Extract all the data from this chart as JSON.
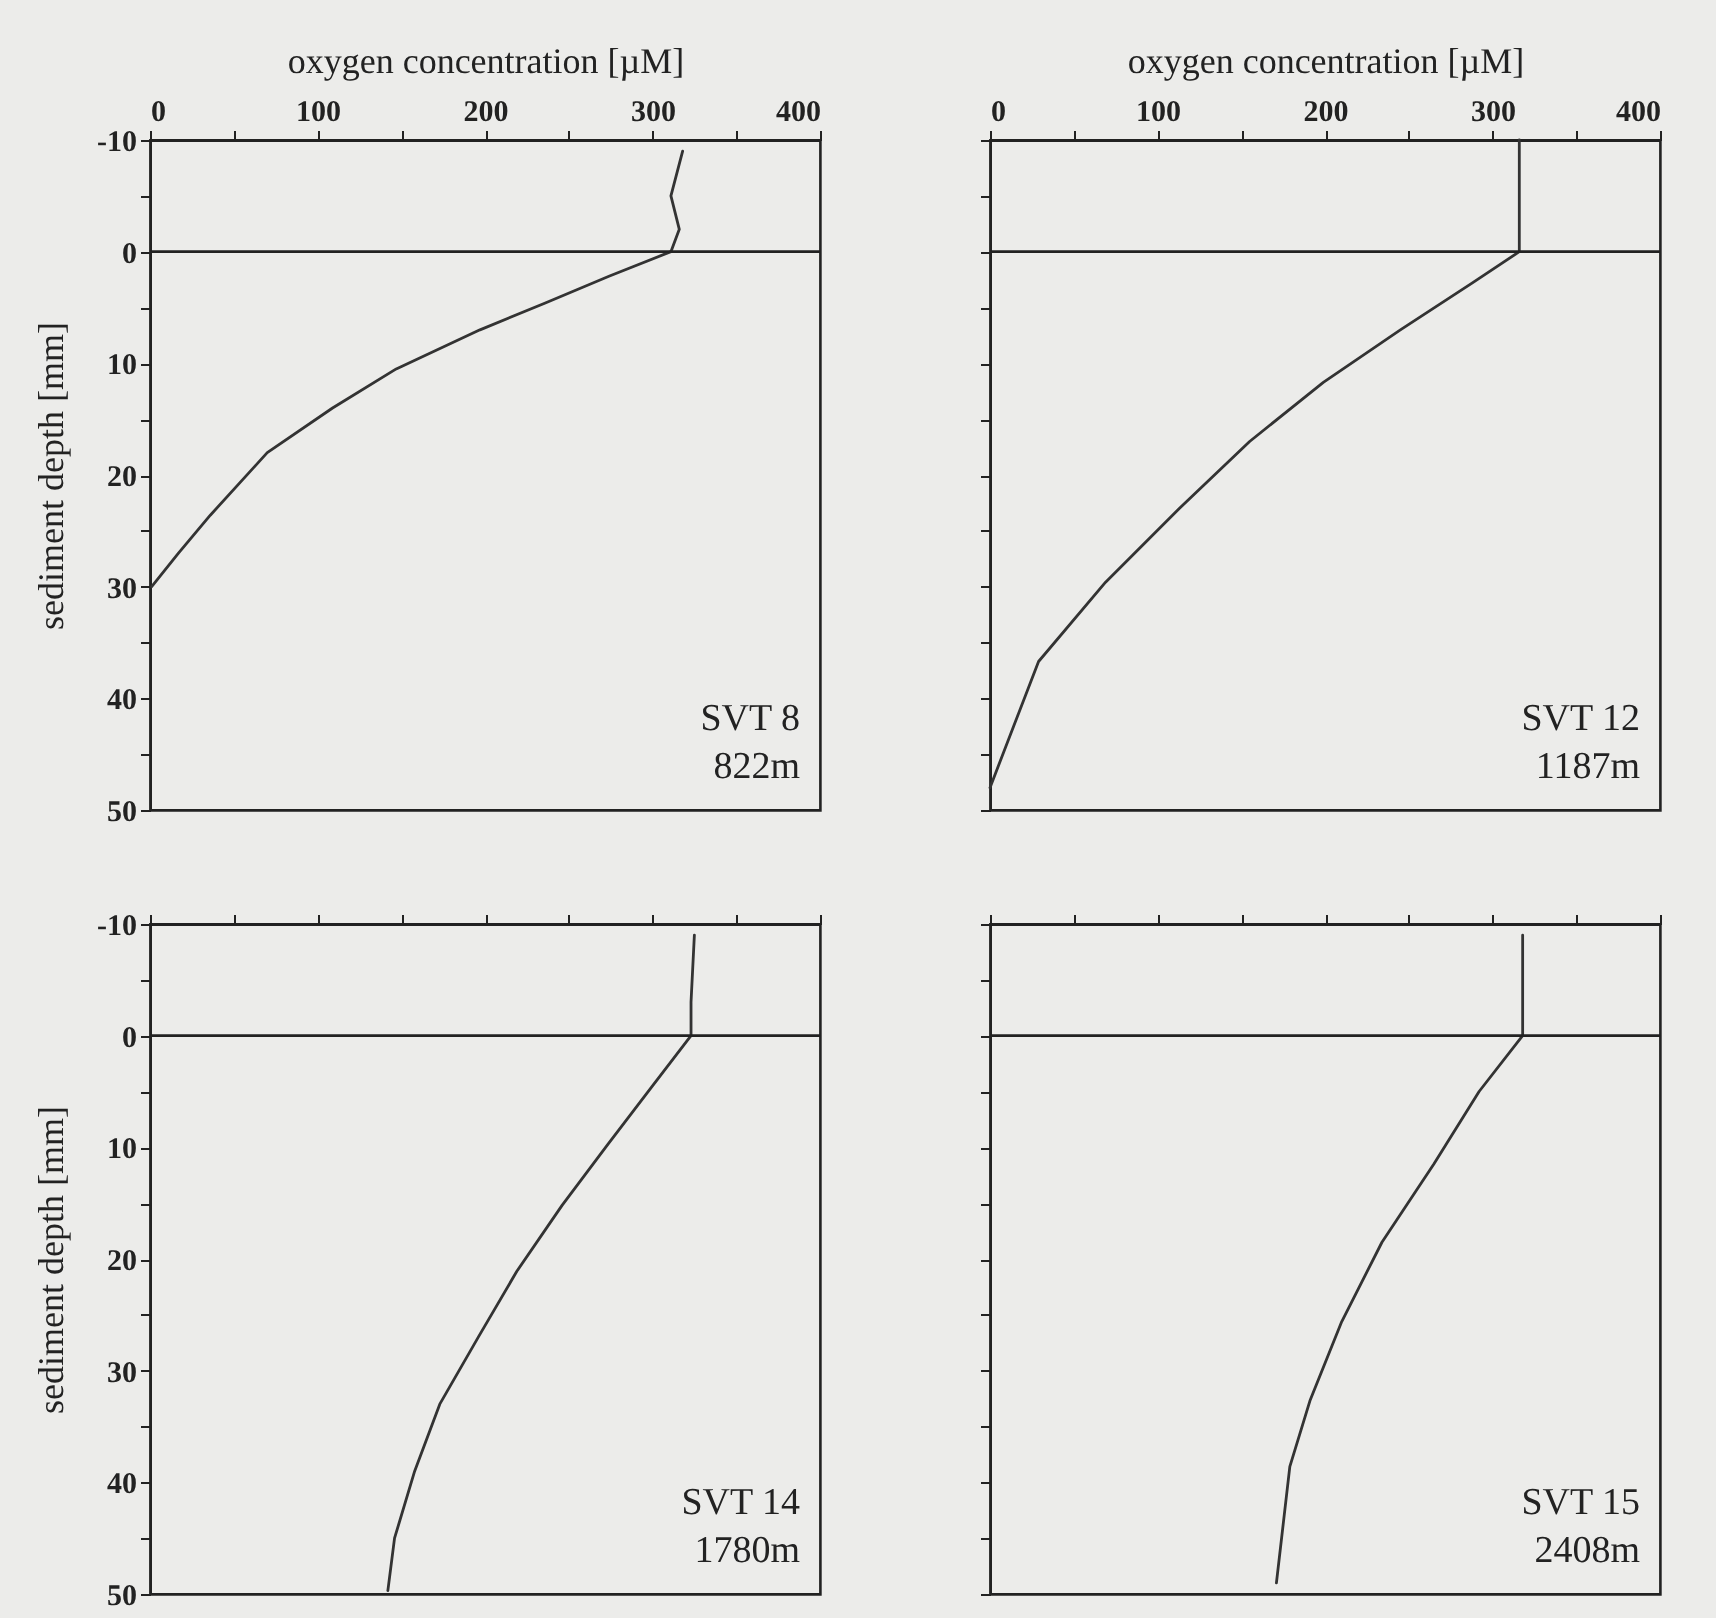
{
  "chart_data": [
    {
      "type": "line",
      "xlabel": "oxygen concentration [µM]",
      "ylabel": "sediment depth [mm]",
      "xlim": [
        0,
        400
      ],
      "ylim": [
        50,
        -10
      ],
      "xticks": [
        0,
        {
          "value": 50,
          "label": null
        },
        100,
        {
          "value": 150,
          "label": null
        },
        200,
        {
          "value": 250,
          "label": null
        },
        300,
        {
          "value": 350,
          "label": null
        },
        400
      ],
      "yticks": [
        -10,
        {
          "value": -5,
          "label": null
        },
        0,
        {
          "value": 5,
          "label": null
        },
        10,
        {
          "value": 15,
          "label": null
        },
        20,
        {
          "value": 25,
          "label": null
        },
        30,
        {
          "value": 35,
          "label": null
        },
        40,
        {
          "value": 45,
          "label": null
        },
        50
      ],
      "grid": false,
      "marker": "none",
      "line_style": "solid",
      "ref_lines": [
        {
          "axis": "y",
          "value": 0,
          "color": "#222222"
        }
      ],
      "annotations": [
        "SVT 8",
        "822m"
      ],
      "series": [
        {
          "color": "#333333",
          "x": [
            318,
            311,
            316,
            311,
            274,
            236,
            197,
            147,
            109,
            70,
            36,
            17,
            1
          ],
          "values": [
            -9,
            -5,
            -2,
            0,
            2.2,
            4.6,
            7,
            10.5,
            14,
            18,
            23.6,
            27,
            30
          ]
        }
      ]
    },
    {
      "type": "line",
      "xlabel": "oxygen concentration [µM]",
      "xlim": [
        0,
        400
      ],
      "ylim": [
        50,
        -10
      ],
      "xticks": [
        0,
        {
          "value": 50,
          "label": null
        },
        100,
        {
          "value": 150,
          "label": null
        },
        200,
        {
          "value": 250,
          "label": null
        },
        300,
        {
          "value": 350,
          "label": null
        },
        400
      ],
      "yticks": [
        -10,
        {
          "value": -5,
          "label": null
        },
        0,
        {
          "value": 5,
          "label": null
        },
        10,
        {
          "value": 15,
          "label": null
        },
        20,
        {
          "value": 25,
          "label": null
        },
        30,
        {
          "value": 35,
          "label": null
        },
        40,
        {
          "value": 45,
          "label": null
        },
        50
      ],
      "tick_labels": "x",
      "grid": false,
      "marker": "none",
      "line_style": "solid",
      "ref_lines": [
        {
          "axis": "y",
          "value": 0,
          "color": "#222222"
        }
      ],
      "annotations": [
        "SVT 12",
        "1187m"
      ],
      "series": [
        {
          "color": "#333333",
          "x": [
            316,
            316,
            288,
            245,
            199,
            155,
            113,
            69,
            29,
            0
          ],
          "values": [
            -10,
            0,
            2.8,
            7,
            11.7,
            17,
            23,
            29.6,
            36.7,
            48
          ]
        }
      ]
    },
    {
      "type": "line",
      "ylabel": "sediment depth [mm]",
      "xlim": [
        0,
        400
      ],
      "ylim": [
        50,
        -10
      ],
      "xticks": [
        0,
        {
          "value": 50,
          "label": null
        },
        100,
        {
          "value": 150,
          "label": null
        },
        200,
        {
          "value": 250,
          "label": null
        },
        300,
        {
          "value": 350,
          "label": null
        },
        400
      ],
      "yticks": [
        -10,
        {
          "value": -5,
          "label": null
        },
        0,
        {
          "value": 5,
          "label": null
        },
        10,
        {
          "value": 15,
          "label": null
        },
        20,
        {
          "value": 25,
          "label": null
        },
        30,
        {
          "value": 35,
          "label": null
        },
        40,
        {
          "value": 45,
          "label": null
        },
        50
      ],
      "tick_labels": "y",
      "grid": false,
      "marker": "none",
      "line_style": "solid",
      "ref_lines": [
        {
          "axis": "y",
          "value": 0,
          "color": "#222222"
        }
      ],
      "annotations": [
        "SVT 14",
        "1780m"
      ],
      "series": [
        {
          "color": "#333333",
          "x": [
            325,
            323,
            323,
            300,
            273,
            246,
            219,
            196,
            173,
            158,
            146,
            142
          ],
          "values": [
            -9,
            -3,
            0,
            4.5,
            9.8,
            15.2,
            21.1,
            27,
            33,
            39,
            45,
            49.7
          ]
        }
      ]
    },
    {
      "type": "line",
      "xlim": [
        0,
        400
      ],
      "ylim": [
        50,
        -10
      ],
      "xticks": [
        0,
        {
          "value": 50,
          "label": null
        },
        100,
        {
          "value": 150,
          "label": null
        },
        200,
        {
          "value": 250,
          "label": null
        },
        300,
        {
          "value": 350,
          "label": null
        },
        400
      ],
      "yticks": [
        -10,
        {
          "value": -5,
          "label": null
        },
        0,
        {
          "value": 5,
          "label": null
        },
        10,
        {
          "value": 15,
          "label": null
        },
        20,
        {
          "value": 25,
          "label": null
        },
        30,
        {
          "value": 35,
          "label": null
        },
        40,
        {
          "value": 45,
          "label": null
        },
        50
      ],
      "tick_labels": false,
      "grid": false,
      "marker": "none",
      "line_style": "solid",
      "ref_lines": [
        {
          "axis": "y",
          "value": 0,
          "color": "#222222"
        }
      ],
      "annotations": [
        "SVT 15",
        "2408m"
      ],
      "series": [
        {
          "color": "#333333",
          "x": [
            318,
            318,
            292,
            265,
            234,
            210,
            191,
            179,
            171
          ],
          "values": [
            -9,
            0,
            5,
            11.5,
            18.5,
            25.6,
            32.7,
            38.6,
            49
          ]
        }
      ]
    }
  ]
}
